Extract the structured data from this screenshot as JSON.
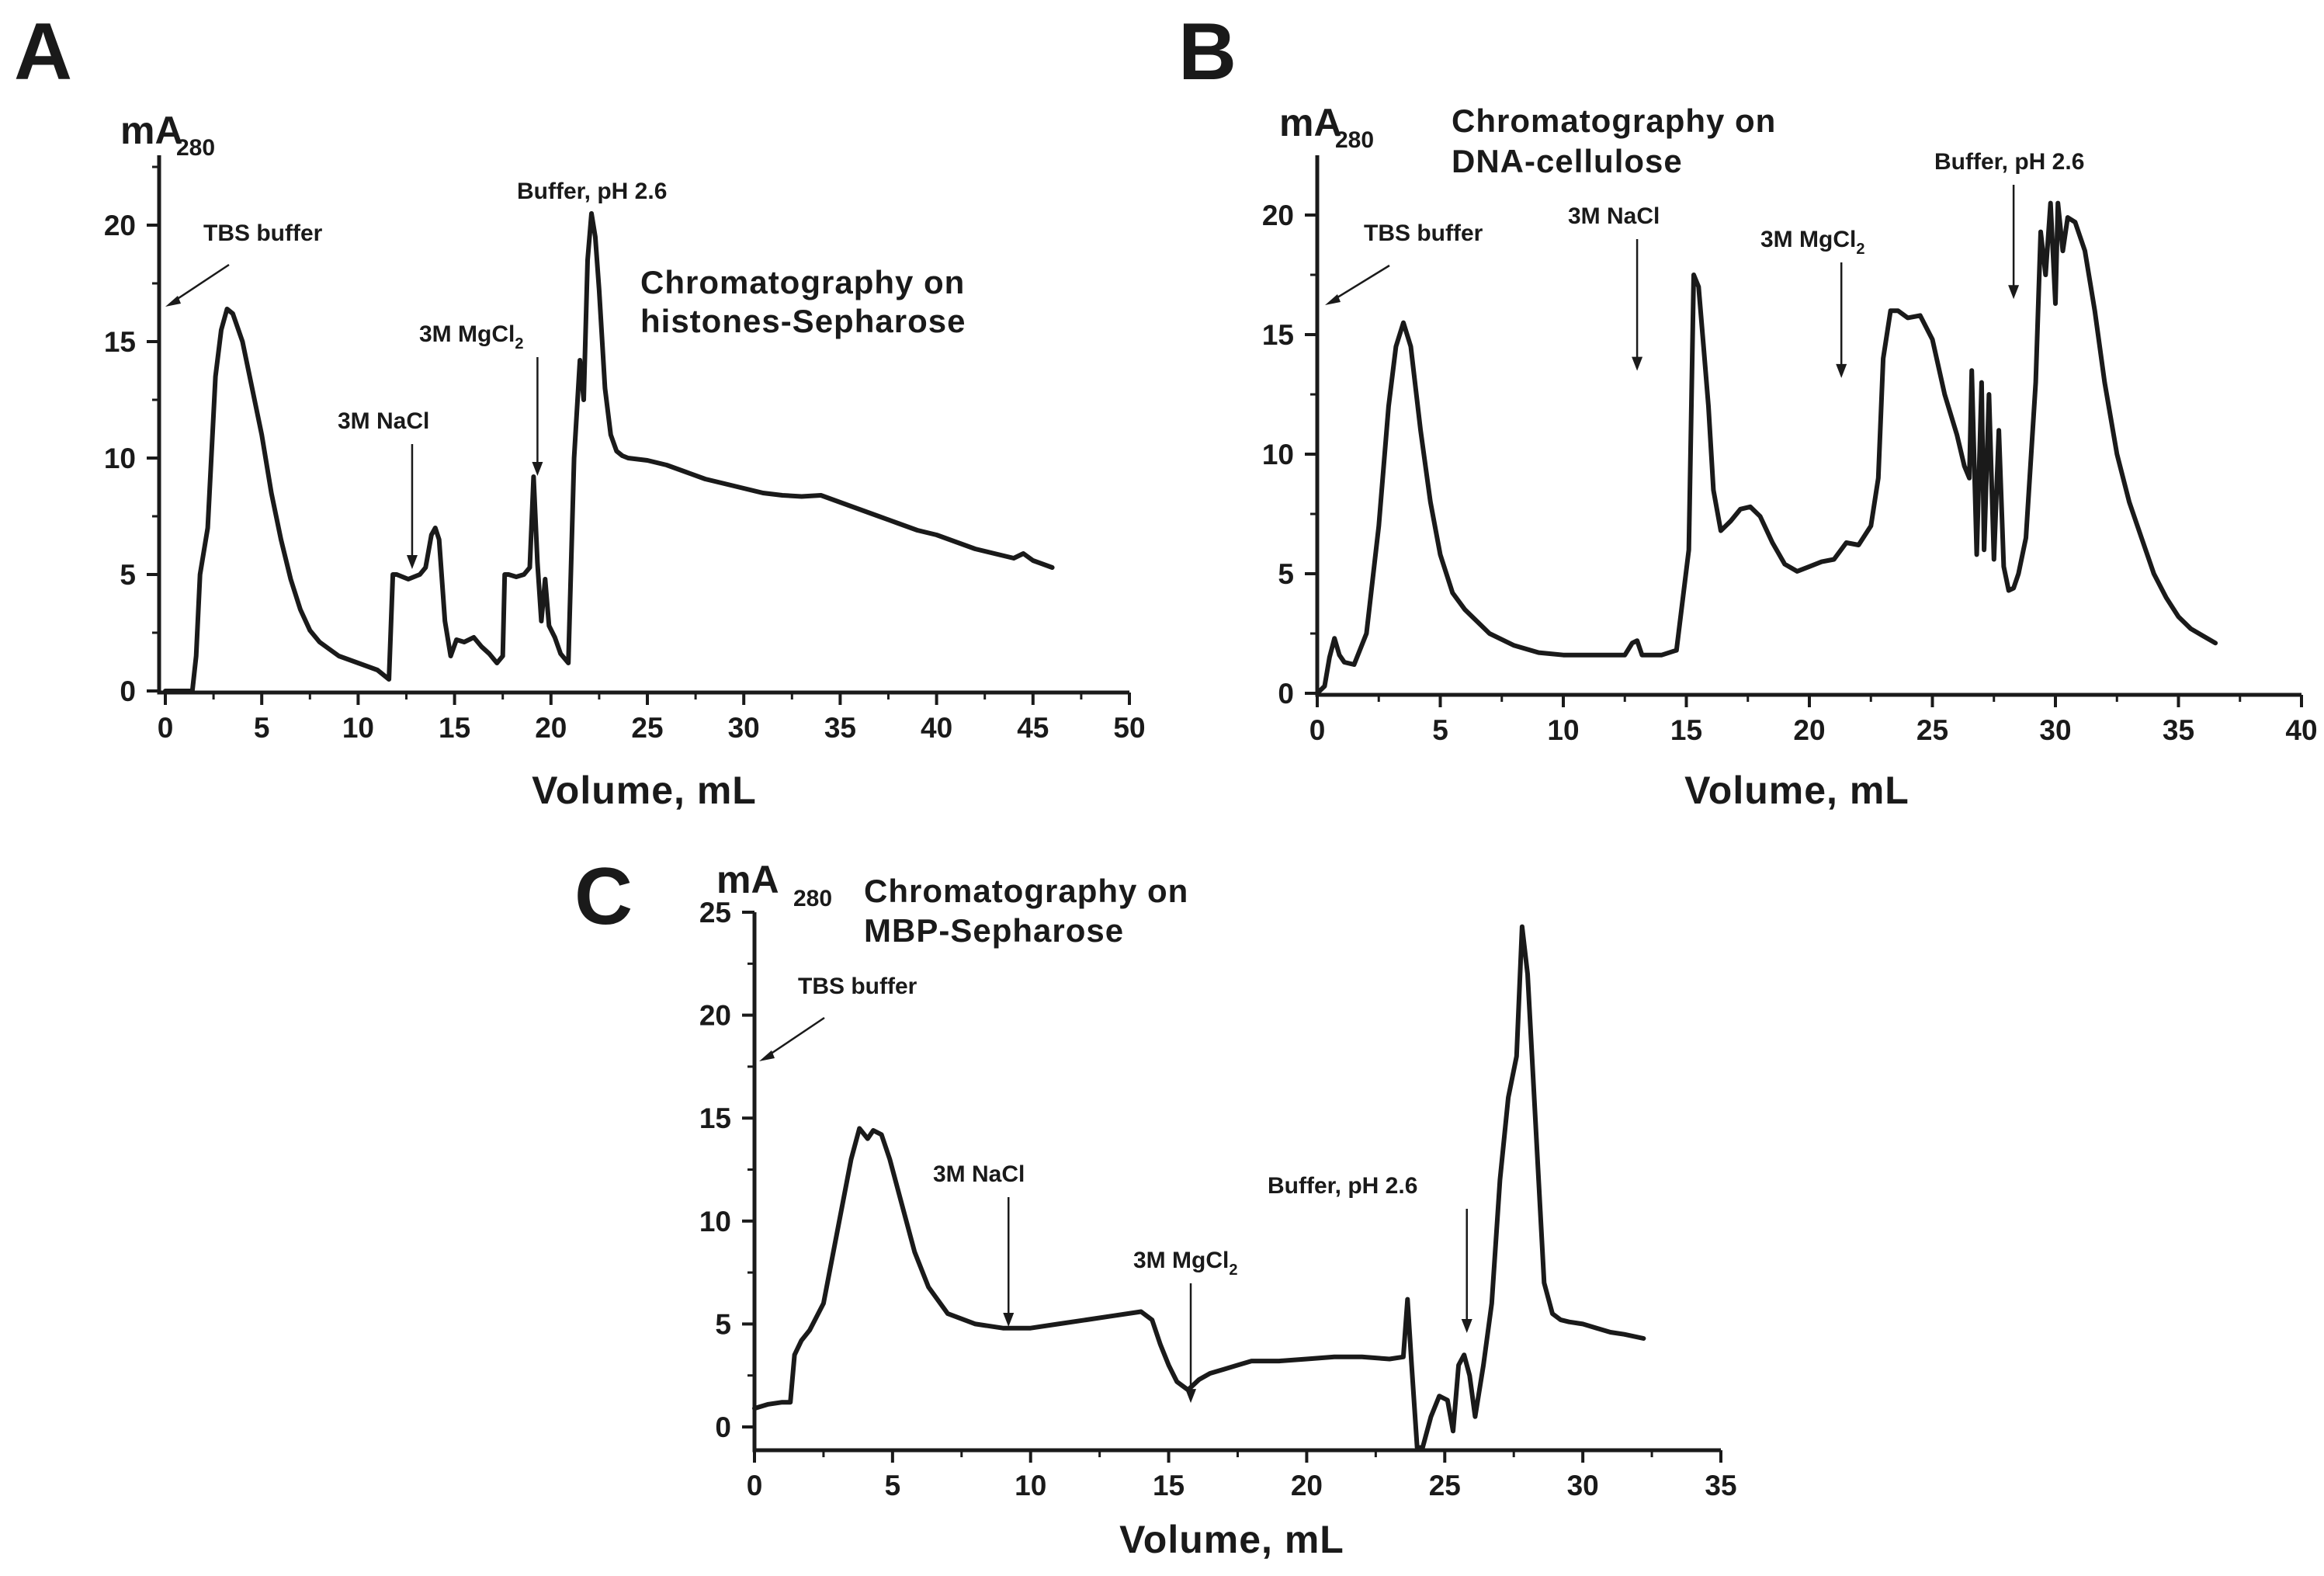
{
  "chart_data": [
    {
      "panel": "A",
      "type": "line",
      "y_unit": "mA",
      "y_unit_subscript": "280",
      "title_lines": [
        "Chromatography on",
        "histones-Sepharose"
      ],
      "xlabel": "Volume, mL",
      "xlim": [
        0,
        50
      ],
      "ylim": [
        0,
        23
      ],
      "xticks": [
        0,
        5,
        10,
        15,
        20,
        25,
        30,
        35,
        40,
        45,
        50
      ],
      "yticks": [
        0,
        5,
        10,
        15,
        20
      ],
      "annotations": [
        {
          "text": "TBS buffer",
          "sub": "",
          "x": 0,
          "y": 16.8,
          "arrow": "diagonal"
        },
        {
          "text": "3M NaCl",
          "sub": "",
          "x": 12.8,
          "y": 7.3,
          "arrow": "down"
        },
        {
          "text": "3M MgCl",
          "sub": "2",
          "x": 19.3,
          "y": 11.3,
          "arrow": "down"
        },
        {
          "text": "Buffer, pH 2.6",
          "sub": "",
          "x": 22.3,
          "y": 21.3,
          "arrow": "none"
        }
      ],
      "series": [
        {
          "name": "A280",
          "x": [
            0,
            1.4,
            1.6,
            1.8,
            2.2,
            2.6,
            2.9,
            3.2,
            3.5,
            4,
            4.5,
            5,
            5.5,
            6,
            6.5,
            7,
            7.5,
            8,
            8.5,
            9,
            10,
            11,
            11.6,
            11.8,
            12,
            12.3,
            12.6,
            12.9,
            13.2,
            13.5,
            13.8,
            14,
            14.2,
            14.5,
            14.8,
            15.1,
            15.5,
            16,
            16.4,
            16.8,
            17.2,
            17.5,
            17.6,
            17.8,
            18.2,
            18.6,
            18.9,
            19.1,
            19.3,
            19.5,
            19.7,
            19.9,
            20.2,
            20.5,
            20.9,
            21.2,
            21.5,
            21.7,
            21.9,
            22.1,
            22.3,
            22.5,
            22.8,
            23.1,
            23.4,
            23.7,
            24,
            25,
            26,
            27,
            28,
            29,
            30,
            31,
            32,
            33,
            34,
            35,
            36,
            37,
            38,
            39,
            40,
            41,
            42,
            43,
            44,
            44.5,
            45,
            46
          ],
          "values": [
            0,
            0,
            1.5,
            5,
            7,
            13.5,
            15.5,
            16.4,
            16.2,
            15,
            13,
            11,
            8.5,
            6.5,
            4.8,
            3.5,
            2.6,
            2.1,
            1.8,
            1.5,
            1.2,
            0.9,
            0.5,
            5,
            5,
            4.9,
            4.8,
            4.9,
            5,
            5.3,
            6.7,
            7,
            6.5,
            3,
            1.5,
            2.2,
            2.1,
            2.3,
            1.9,
            1.6,
            1.2,
            1.5,
            5,
            5,
            4.9,
            5,
            5.3,
            9.2,
            5.5,
            3,
            4.8,
            2.8,
            2.3,
            1.6,
            1.2,
            10,
            14.2,
            12.5,
            18.5,
            20.5,
            19.5,
            17.2,
            13,
            11,
            10.3,
            10.1,
            10,
            9.9,
            9.7,
            9.4,
            9.1,
            8.9,
            8.7,
            8.5,
            8.4,
            8.35,
            8.4,
            8.1,
            7.8,
            7.5,
            7.2,
            6.9,
            6.7,
            6.4,
            6.1,
            5.9,
            5.7,
            5.9,
            5.6,
            5.3
          ]
        }
      ]
    },
    {
      "panel": "B",
      "type": "line",
      "y_unit": "mA",
      "y_unit_subscript": "280",
      "title_lines": [
        "Chromatography on",
        "DNA-cellulose"
      ],
      "xlabel": "Volume, mL",
      "xlim": [
        0,
        40
      ],
      "ylim": [
        0,
        22.5
      ],
      "xticks": [
        0,
        5,
        10,
        15,
        20,
        25,
        30,
        35,
        40
      ],
      "yticks": [
        0,
        5,
        10,
        15,
        20
      ],
      "annotations": [
        {
          "text": "TBS buffer",
          "sub": "",
          "x": 0,
          "y": 16.8,
          "arrow": "diagonal"
        },
        {
          "text": "3M NaCl",
          "sub": "",
          "x": 13,
          "y": 15.5,
          "arrow": "down"
        },
        {
          "text": "3M MgCl",
          "sub": "2",
          "x": 21.3,
          "y": 15.2,
          "arrow": "down"
        },
        {
          "text": "Buffer, pH 2.6",
          "sub": "",
          "x": 28.3,
          "y": 18.5,
          "arrow": "down"
        }
      ],
      "series": [
        {
          "name": "A280",
          "x": [
            0,
            0.3,
            0.5,
            0.7,
            0.9,
            1.1,
            1.5,
            2,
            2.5,
            2.9,
            3.2,
            3.5,
            3.8,
            4.2,
            4.6,
            5,
            5.5,
            6,
            7,
            8,
            9,
            10,
            11,
            12,
            12.5,
            12.8,
            13,
            13.2,
            13.6,
            14,
            14.6,
            15.1,
            15.3,
            15.5,
            15.7,
            15.9,
            16.1,
            16.4,
            16.8,
            17.2,
            17.6,
            18,
            18.5,
            19,
            19.5,
            20,
            20.5,
            21,
            21.5,
            22,
            22.5,
            22.8,
            23,
            23.3,
            23.6,
            24,
            24.5,
            25,
            25.5,
            26,
            26.3,
            26.5,
            26.6,
            26.8,
            27,
            27.1,
            27.3,
            27.5,
            27.7,
            27.9,
            28.1,
            28.3,
            28.5,
            28.8,
            29.2,
            29.4,
            29.6,
            29.8,
            30,
            30.1,
            30.3,
            30.5,
            30.8,
            31.2,
            31.6,
            32,
            32.5,
            33,
            33.5,
            34,
            34.5,
            35,
            35.5,
            36,
            36.5
          ],
          "values": [
            0,
            0.3,
            1.5,
            2.3,
            1.6,
            1.3,
            1.2,
            2.5,
            7,
            12,
            14.5,
            15.5,
            14.5,
            11,
            8,
            5.8,
            4.2,
            3.5,
            2.5,
            2,
            1.7,
            1.6,
            1.6,
            1.6,
            1.6,
            2.1,
            2.2,
            1.6,
            1.6,
            1.6,
            1.8,
            6,
            17.5,
            17,
            14.5,
            12,
            8.5,
            6.8,
            7.2,
            7.7,
            7.8,
            7.4,
            6.3,
            5.4,
            5.1,
            5.3,
            5.5,
            5.6,
            6.3,
            6.2,
            7,
            9,
            14,
            16,
            16,
            15.7,
            15.8,
            14.8,
            12.5,
            10.8,
            9.5,
            9,
            13.5,
            5.8,
            13,
            6,
            12.5,
            5.6,
            11,
            5.3,
            4.3,
            4.4,
            5,
            6.5,
            13,
            19.3,
            17.5,
            20.5,
            16.3,
            20.5,
            18.5,
            19.9,
            19.7,
            18.5,
            16,
            13,
            10,
            8,
            6.5,
            5,
            4,
            3.2,
            2.7,
            2.4,
            2.1
          ]
        }
      ]
    },
    {
      "panel": "C",
      "type": "line",
      "y_unit": "mA",
      "y_unit_subscript": "280",
      "title_lines": [
        "Chromatography on",
        "MBP-Sepharose"
      ],
      "xlabel": "Volume, mL",
      "xlim": [
        0,
        35
      ],
      "ylim": [
        -1.1,
        25
      ],
      "xticks": [
        0,
        5,
        10,
        15,
        20,
        25,
        30,
        35
      ],
      "yticks": [
        0,
        5,
        10,
        15,
        20,
        25
      ],
      "annotations": [
        {
          "text": "TBS buffer",
          "sub": "",
          "x": 0,
          "y": 17.5,
          "arrow": "diagonal"
        },
        {
          "text": "3M NaCl",
          "sub": "",
          "x": 9.2,
          "y": 7.2,
          "arrow": "down"
        },
        {
          "text": "3M MgCl",
          "sub": "2",
          "x": 15.8,
          "y": 3.5,
          "arrow": "down"
        },
        {
          "text": "Buffer, pH 2.6",
          "sub": "",
          "x": 25.8,
          "y": 6.9,
          "arrow": "down"
        }
      ],
      "series": [
        {
          "name": "A280",
          "x": [
            0,
            0.5,
            1,
            1.3,
            1.45,
            1.7,
            2,
            2.5,
            3,
            3.5,
            3.8,
            4.1,
            4.3,
            4.6,
            4.9,
            5.3,
            5.8,
            6.3,
            7,
            8,
            9,
            10,
            11,
            12,
            13,
            14,
            14.4,
            14.7,
            15,
            15.3,
            15.7,
            16.1,
            16.5,
            17,
            17.5,
            18,
            19,
            20,
            21,
            22,
            23,
            23.5,
            23.65,
            23.8,
            24,
            24.2,
            24.5,
            24.8,
            25.1,
            25.3,
            25.5,
            25.7,
            25.9,
            26.1,
            26.4,
            26.7,
            27,
            27.3,
            27.6,
            27.8,
            28,
            28.2,
            28.4,
            28.6,
            28.9,
            29.2,
            29.5,
            30,
            30.5,
            31,
            31.5,
            32.2
          ],
          "values": [
            0.9,
            1.1,
            1.2,
            1.2,
            3.5,
            4.2,
            4.7,
            6,
            9.5,
            13,
            14.5,
            14,
            14.4,
            14.2,
            13,
            11,
            8.5,
            6.8,
            5.5,
            5,
            4.8,
            4.8,
            5,
            5.2,
            5.4,
            5.6,
            5.2,
            4,
            3,
            2.2,
            1.8,
            2.3,
            2.6,
            2.8,
            3,
            3.2,
            3.2,
            3.3,
            3.4,
            3.4,
            3.3,
            3.4,
            6.2,
            3,
            -1,
            -1,
            0.5,
            1.5,
            1.3,
            -0.2,
            3,
            3.5,
            2.5,
            0.5,
            3,
            6,
            12,
            16,
            18,
            24.3,
            22,
            17,
            12,
            7,
            5.5,
            5.2,
            5.1,
            5,
            4.8,
            4.6,
            4.5,
            4.3
          ]
        }
      ]
    }
  ]
}
